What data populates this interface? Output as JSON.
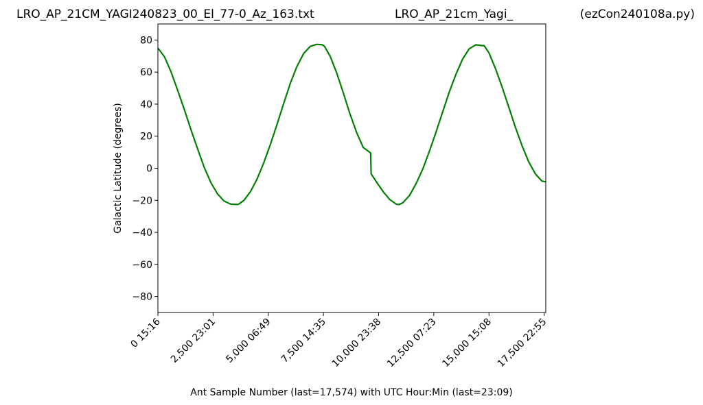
{
  "header": {
    "left": "LRO_AP_21CM_YAGI240823_00_El_77-0_Az_163.txt",
    "center": "LRO_AP_21cm_Yagi_",
    "right": "(ezCon240108a.py)"
  },
  "chart_data": {
    "type": "line",
    "title": "",
    "xlabel": "Ant Sample Number (last=17,574) with UTC Hour:Min (last=23:09)",
    "ylabel": "Galactic Latitude (degrees)",
    "xlim": [
      0,
      17574
    ],
    "ylim": [
      -90,
      90
    ],
    "x_ticks": [
      {
        "value": 0,
        "label": "0  15:16"
      },
      {
        "value": 2500,
        "label": "2,500  23:01"
      },
      {
        "value": 5000,
        "label": "5,000  06:49"
      },
      {
        "value": 7500,
        "label": "7,500  14:35"
      },
      {
        "value": 10000,
        "label": "10,000  23:38"
      },
      {
        "value": 12500,
        "label": "12,500  07:23"
      },
      {
        "value": 15000,
        "label": "15,000  15:08"
      },
      {
        "value": 17500,
        "label": "17,500  22:55"
      }
    ],
    "y_ticks": [
      -80,
      -60,
      -40,
      -20,
      0,
      20,
      40,
      60,
      80
    ],
    "line_color": "#008000",
    "grid": false,
    "legend": "none",
    "series": [
      {
        "x": [
          0,
          300,
          600,
          900,
          1200,
          1500,
          1800,
          2100,
          2400,
          2700,
          3000,
          3300,
          3600,
          3650,
          3900,
          4200,
          4500,
          4800,
          5100,
          5400,
          5700,
          6000,
          6300,
          6600,
          6900,
          7200,
          7450,
          7550,
          7800,
          8100,
          8400,
          8700,
          9000,
          9300,
          9640,
          9660,
          9900,
          10200,
          10500,
          10800,
          10920,
          11100,
          11400,
          11700,
          12000,
          12300,
          12600,
          12900,
          13200,
          13500,
          13800,
          14100,
          14400,
          14700,
          14780,
          15000,
          15300,
          15600,
          15900,
          16200,
          16500,
          16800,
          17100,
          17400,
          17574
        ],
        "y": [
          75,
          69.5,
          60,
          48.5,
          36.5,
          24,
          12,
          0.5,
          -9,
          -16,
          -20.5,
          -22.4,
          -22.6,
          -22.5,
          -20,
          -14.5,
          -6.5,
          3.5,
          15,
          27.5,
          40.5,
          53,
          63.5,
          71.5,
          76,
          77.3,
          77,
          76,
          70,
          59.5,
          47,
          34,
          22.5,
          13,
          9.5,
          -3.5,
          -8.5,
          -14.5,
          -19.5,
          -22.4,
          -22.7,
          -21.5,
          -17,
          -9.5,
          -0.5,
          10.5,
          22.5,
          35,
          47.5,
          58.5,
          68,
          74.5,
          77,
          76.5,
          76.5,
          72,
          62,
          50.5,
          38,
          25.5,
          14,
          4,
          -3.5,
          -8,
          -8.5
        ]
      }
    ]
  }
}
